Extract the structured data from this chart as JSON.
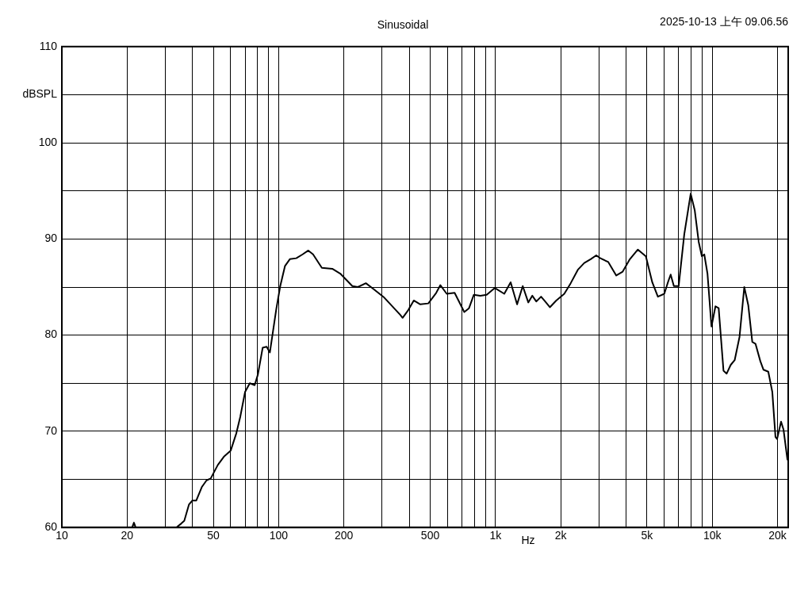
{
  "chart_data": {
    "type": "line",
    "title": "Sinusoidal",
    "xlabel": "Hz",
    "ylabel": "dBSPL",
    "annotations": [
      "2025-10-13 上午 09.06.56"
    ],
    "x": [
      10,
      21.1,
      21.5,
      21.9,
      33.7,
      35.5,
      36.7,
      38.6,
      40.0,
      41.7,
      44.2,
      46.5,
      48.6,
      52.4,
      56.1,
      60.1,
      63.8,
      66.5,
      70.0,
      73.6,
      77.5,
      80.2,
      84.4,
      88.0,
      91.1,
      97.5,
      101.7,
      107,
      112.6,
      120.6,
      129,
      137,
      144.1,
      158.2,
      176.7,
      192.4,
      218.6,
      231.9,
      252.5,
      270.2,
      307,
      364,
      373,
      396,
      420,
      450,
      490,
      533,
      557,
      596,
      648,
      718,
      755,
      795,
      851,
      911,
      992,
      1098,
      1175,
      1258,
      1336,
      1417,
      1478,
      1542,
      1623,
      1680,
      1782,
      1907,
      2077,
      2223,
      2399,
      2568,
      2749,
      2917,
      3044,
      3314,
      3607,
      3862,
      4168,
      4538,
      4940,
      5287,
      5612,
      6007,
      6266,
      6428,
      6651,
      6998,
      7428,
      7951,
      8298,
      8657,
      8954,
      9186,
      9503,
      9916,
      10346,
      10703,
      11265,
      11652,
      12158,
      12685,
      13353,
      14048,
      14660,
      15295,
      15825,
      16654,
      17230,
      18130,
      18917,
      19567,
      19904,
      20766,
      21302,
      22231
    ],
    "series": [
      {
        "color": "#000000",
        "values": [
          60,
          60,
          60.5,
          60,
          60,
          60.4,
          60.7,
          62.4,
          62.8,
          62.8,
          64.2,
          64.9,
          65.1,
          66.5,
          67.4,
          68.0,
          69.8,
          71.5,
          74.1,
          75.0,
          74.8,
          75.9,
          78.7,
          78.8,
          78.2,
          82.7,
          85.1,
          87.2,
          87.9,
          88.0,
          88.4,
          88.8,
          88.4,
          87.0,
          86.9,
          86.4,
          85.1,
          85.0,
          85.4,
          84.9,
          83.9,
          82.1,
          81.8,
          82.6,
          83.6,
          83.2,
          83.3,
          84.4,
          85.2,
          84.3,
          84.4,
          82.4,
          82.8,
          84.2,
          84.1,
          84.2,
          84.9,
          84.3,
          85.5,
          83.2,
          85.1,
          83.4,
          84.1,
          83.5,
          84.0,
          83.6,
          82.9,
          83.6,
          84.3,
          85.4,
          86.8,
          87.5,
          87.9,
          88.3,
          88.0,
          87.6,
          86.2,
          86.6,
          87.9,
          88.9,
          88.2,
          85.5,
          84.0,
          84.3,
          85.6,
          86.3,
          85.1,
          85.1,
          90.5,
          94.7,
          93.0,
          89.7,
          88.2,
          88.4,
          86.4,
          80.9,
          83.0,
          82.8,
          76.3,
          76.0,
          76.9,
          77.4,
          79.8,
          85.0,
          83.1,
          79.3,
          79.1,
          77.3,
          76.4,
          76.2,
          74.1,
          69.4,
          69.2,
          71.0,
          70.2,
          67.0
        ]
      }
    ],
    "log": "x",
    "xlim": [
      10,
      22400
    ],
    "xticks": [
      10,
      20,
      {
        "value": 30,
        "label": null
      },
      {
        "value": 40,
        "label": null
      },
      50,
      {
        "value": 60,
        "label": null
      },
      {
        "value": 70,
        "label": null
      },
      {
        "value": 80,
        "label": null
      },
      {
        "value": 90,
        "label": null
      },
      100,
      200,
      {
        "value": 300,
        "label": null
      },
      {
        "value": 400,
        "label": null
      },
      500,
      {
        "value": 600,
        "label": null
      },
      {
        "value": 700,
        "label": null
      },
      {
        "value": 800,
        "label": null
      },
      {
        "value": 900,
        "label": null
      },
      {
        "value": 1000,
        "label": "1k"
      },
      {
        "value": 2000,
        "label": "2k"
      },
      {
        "value": 3000,
        "label": null
      },
      {
        "value": 4000,
        "label": null
      },
      {
        "value": 5000,
        "label": "5k"
      },
      {
        "value": 6000,
        "label": null
      },
      {
        "value": 7000,
        "label": null
      },
      {
        "value": 8000,
        "label": null
      },
      {
        "value": 9000,
        "label": null
      },
      {
        "value": 10000,
        "label": "10k"
      },
      {
        "value": 20000,
        "label": "20k"
      }
    ],
    "ylim": [
      60,
      110
    ],
    "yticks": [
      60,
      {
        "value": 65,
        "label": null
      },
      70,
      {
        "value": 75,
        "label": null
      },
      80,
      {
        "value": 85,
        "label": null
      },
      90,
      {
        "value": 95,
        "label": null
      },
      100,
      {
        "value": 105,
        "label": null
      },
      110
    ],
    "grid": true,
    "legend": false,
    "marker": "none",
    "line_style": "solid"
  }
}
